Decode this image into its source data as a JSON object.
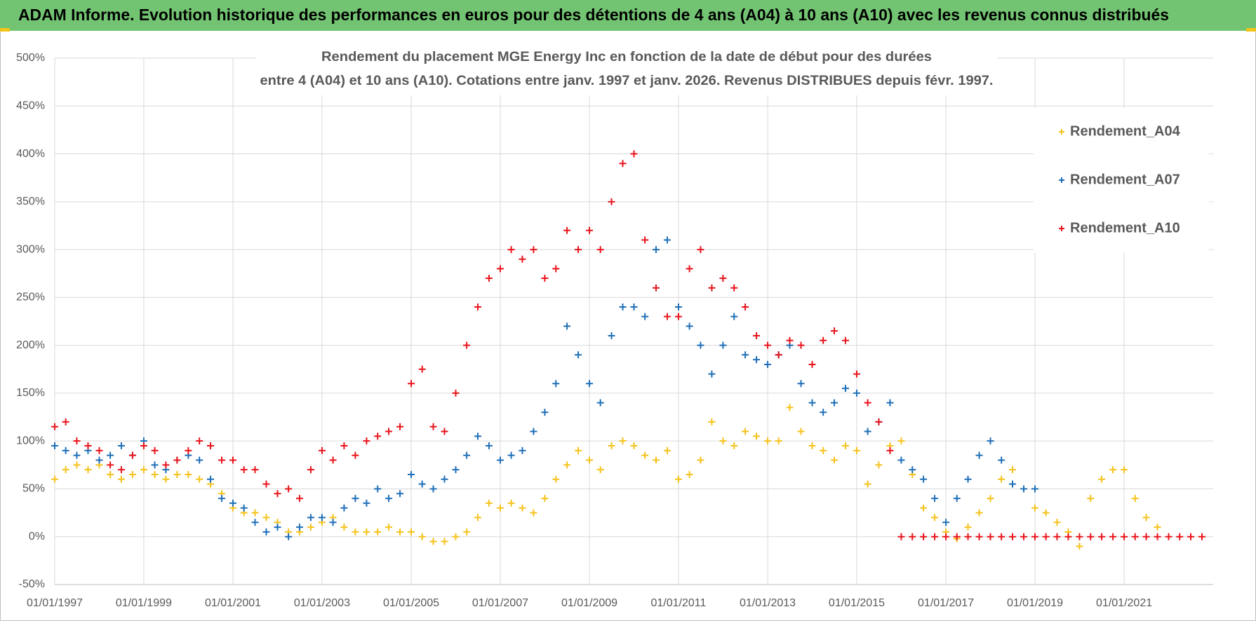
{
  "header": {
    "title": "ADAM Informe. Evolution historique des performances en euros pour des détentions de 4 ans (A04) à 10 ans (A10) avec les revenus connus distribués"
  },
  "chart_data": {
    "type": "scatter",
    "title": [
      "Rendement du placement MGE Energy Inc en fonction de la date de début pour des durées",
      "entre 4 (A04) et 10 ans (A10). Cotations entre janv. 1997 et janv. 2026. Revenus DISTRIBUES depuis févr. 1997."
    ],
    "x": [
      "1997-01-01",
      "1997-04-01",
      "1997-07-01",
      "1997-10-01",
      "1998-01-01",
      "1998-04-01",
      "1998-07-01",
      "1998-10-01",
      "1999-01-01",
      "1999-04-01",
      "1999-07-01",
      "1999-10-01",
      "2000-01-01",
      "2000-04-01",
      "2000-07-01",
      "2000-10-01",
      "2001-01-01",
      "2001-04-01",
      "2001-07-01",
      "2001-10-01",
      "2002-01-01",
      "2002-04-01",
      "2002-07-01",
      "2002-10-01",
      "2003-01-01",
      "2003-04-01",
      "2003-07-01",
      "2003-10-01",
      "2004-01-01",
      "2004-04-01",
      "2004-07-01",
      "2004-10-01",
      "2005-01-01",
      "2005-04-01",
      "2005-07-01",
      "2005-10-01",
      "2006-01-01",
      "2006-04-01",
      "2006-07-01",
      "2006-10-01",
      "2007-01-01",
      "2007-04-01",
      "2007-07-01",
      "2007-10-01",
      "2008-01-01",
      "2008-04-01",
      "2008-07-01",
      "2008-10-01",
      "2009-01-01",
      "2009-04-01",
      "2009-07-01",
      "2009-10-01",
      "2010-01-01",
      "2010-04-01",
      "2010-07-01",
      "2010-10-01",
      "2011-01-01",
      "2011-04-01",
      "2011-07-01",
      "2011-10-01",
      "2012-01-01",
      "2012-04-01",
      "2012-07-01",
      "2012-10-01",
      "2013-01-01",
      "2013-04-01",
      "2013-07-01",
      "2013-10-01",
      "2014-01-01",
      "2014-04-01",
      "2014-07-01",
      "2014-10-01",
      "2015-01-01",
      "2015-04-01",
      "2015-07-01",
      "2015-10-01",
      "2016-01-01",
      "2016-04-01",
      "2016-07-01",
      "2016-10-01",
      "2017-01-01",
      "2017-04-01",
      "2017-07-01",
      "2017-10-01",
      "2018-01-01",
      "2018-04-01",
      "2018-07-01",
      "2018-10-01",
      "2019-01-01",
      "2019-04-01",
      "2019-07-01",
      "2019-10-01",
      "2020-01-01",
      "2020-04-01",
      "2020-07-01",
      "2020-10-01",
      "2021-01-01",
      "2021-04-01",
      "2021-07-01",
      "2021-10-01",
      "2022-01-01",
      "2022-04-01",
      "2022-07-01",
      "2022-10-01"
    ],
    "series": [
      {
        "name": "Rendement_A04",
        "color": "#f5c21b",
        "values": [
          60,
          70,
          75,
          70,
          75,
          65,
          60,
          65,
          70,
          65,
          60,
          65,
          65,
          60,
          55,
          45,
          30,
          25,
          25,
          20,
          15,
          5,
          5,
          10,
          15,
          20,
          10,
          5,
          5,
          5,
          10,
          5,
          5,
          0,
          -5,
          -5,
          0,
          5,
          20,
          35,
          30,
          35,
          30,
          25,
          40,
          60,
          75,
          90,
          80,
          70,
          95,
          100,
          95,
          85,
          80,
          90,
          60,
          65,
          80,
          120,
          100,
          95,
          110,
          105,
          100,
          100,
          135,
          110,
          95,
          90,
          80,
          95,
          90,
          55,
          75,
          95,
          100,
          65,
          30,
          20,
          5,
          -2,
          10,
          25,
          40,
          60,
          70,
          50,
          30,
          25,
          15,
          5,
          -10,
          40,
          60,
          70,
          70,
          40,
          20,
          10,
          null,
          null,
          null,
          null
        ]
      },
      {
        "name": "Rendement_A07",
        "color": "#1f6fb8",
        "values": [
          95,
          90,
          85,
          90,
          80,
          85,
          95,
          85,
          100,
          75,
          70,
          80,
          85,
          80,
          60,
          40,
          35,
          30,
          15,
          5,
          10,
          0,
          10,
          20,
          20,
          15,
          30,
          40,
          35,
          50,
          40,
          45,
          65,
          55,
          50,
          60,
          70,
          85,
          105,
          95,
          80,
          85,
          90,
          110,
          130,
          160,
          220,
          190,
          160,
          140,
          210,
          240,
          240,
          230,
          300,
          310,
          240,
          220,
          200,
          170,
          200,
          230,
          190,
          185,
          180,
          190,
          200,
          160,
          140,
          130,
          140,
          155,
          150,
          110,
          120,
          140,
          80,
          70,
          60,
          40,
          15,
          40,
          60,
          85,
          100,
          80,
          55,
          50,
          50,
          null,
          null,
          null,
          null,
          null,
          null,
          null,
          null,
          null,
          null,
          null,
          null,
          null,
          null,
          null
        ]
      },
      {
        "name": "Rendement_A10",
        "color": "#e8141b",
        "values": [
          115,
          120,
          100,
          95,
          90,
          75,
          70,
          85,
          95,
          90,
          75,
          80,
          90,
          100,
          95,
          80,
          80,
          70,
          70,
          55,
          45,
          50,
          40,
          70,
          90,
          80,
          95,
          85,
          100,
          105,
          110,
          115,
          160,
          175,
          115,
          110,
          150,
          200,
          240,
          270,
          280,
          300,
          290,
          300,
          270,
          280,
          320,
          300,
          320,
          300,
          350,
          390,
          400,
          310,
          260,
          230,
          230,
          280,
          300,
          260,
          270,
          260,
          240,
          210,
          200,
          190,
          205,
          200,
          180,
          205,
          215,
          205,
          170,
          140,
          120,
          90,
          0,
          0,
          0,
          0,
          0,
          0,
          0,
          0,
          0,
          0,
          0,
          0,
          0,
          0,
          0,
          0,
          0,
          0,
          0,
          0,
          0,
          0,
          0,
          0,
          0,
          0,
          0,
          0
        ]
      }
    ],
    "xlim": [
      "1997-01-01",
      "2023-01-01"
    ],
    "xticks": [
      {
        "value": "1997-01-01",
        "label": "01/01/1997"
      },
      {
        "value": "1999-01-01",
        "label": "01/01/1999"
      },
      {
        "value": "2001-01-01",
        "label": "01/01/2001"
      },
      {
        "value": "2003-01-01",
        "label": "01/01/2003"
      },
      {
        "value": "2005-01-01",
        "label": "01/01/2005"
      },
      {
        "value": "2007-01-01",
        "label": "01/01/2007"
      },
      {
        "value": "2009-01-01",
        "label": "01/01/2009"
      },
      {
        "value": "2011-01-01",
        "label": "01/01/2011"
      },
      {
        "value": "2013-01-01",
        "label": "01/01/2013"
      },
      {
        "value": "2015-01-01",
        "label": "01/01/2015"
      },
      {
        "value": "2017-01-01",
        "label": "01/01/2017"
      },
      {
        "value": "2019-01-01",
        "label": "01/01/2019"
      },
      {
        "value": "2021-01-01",
        "label": "01/01/2021"
      }
    ],
    "ylim": [
      -50,
      500
    ],
    "yticks": [
      {
        "value": -50,
        "label": "-50%"
      },
      {
        "value": 0,
        "label": "0%"
      },
      {
        "value": 50,
        "label": "50%"
      },
      {
        "value": 100,
        "label": "100%"
      },
      {
        "value": 150,
        "label": "150%"
      },
      {
        "value": 200,
        "label": "200%"
      },
      {
        "value": 250,
        "label": "250%"
      },
      {
        "value": 300,
        "label": "300%"
      },
      {
        "value": 350,
        "label": "350%"
      },
      {
        "value": 400,
        "label": "400%"
      },
      {
        "value": 450,
        "label": "450%"
      },
      {
        "value": 500,
        "label": "500%"
      }
    ],
    "grid": true,
    "legend": "upper right",
    "marker": "+"
  }
}
